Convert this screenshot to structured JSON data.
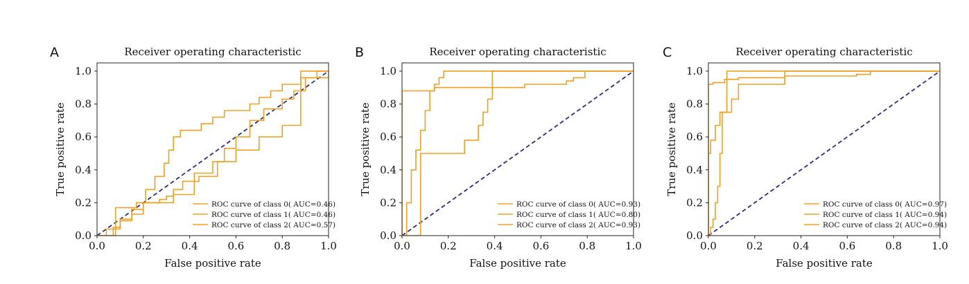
{
  "chart_data": [
    {
      "type": "line",
      "panel_label": "A",
      "title": "Receiver operating characteristic",
      "xlabel": "False positive rate",
      "ylabel": "True positive rate",
      "xlim": [
        0,
        1
      ],
      "ylim": [
        0,
        1.05
      ],
      "xticks": [
        "0.0",
        "0.2",
        "0.4",
        "0.6",
        "0.8",
        "1.0"
      ],
      "yticks": [
        "0.0",
        "0.2",
        "0.4",
        "0.6",
        "0.8",
        "1.0"
      ],
      "legend_position": "lower-right",
      "curve_color": "#f0a020",
      "diagonal_color": "#2a2a7a",
      "series": [
        {
          "name": "ROC curve of class 0( AUC=0.46)",
          "x": [
            0,
            0.07,
            0.07,
            0.1,
            0.1,
            0.15,
            0.15,
            0.2,
            0.2,
            0.27,
            0.27,
            0.3,
            0.3,
            0.33,
            0.33,
            0.37,
            0.37,
            0.44,
            0.44,
            0.52,
            0.52,
            0.6,
            0.6,
            0.7,
            0.7,
            0.8,
            0.8,
            0.88,
            0.88,
            1.0
          ],
          "y": [
            0,
            0,
            0.05,
            0.05,
            0.09,
            0.09,
            0.13,
            0.13,
            0.2,
            0.2,
            0.22,
            0.22,
            0.24,
            0.24,
            0.28,
            0.28,
            0.33,
            0.33,
            0.36,
            0.36,
            0.45,
            0.45,
            0.52,
            0.52,
            0.6,
            0.6,
            0.67,
            0.67,
            1.0,
            1.0
          ]
        },
        {
          "name": "ROC curve of class 1( AUC=0.46)",
          "x": [
            0,
            0.04,
            0.04,
            0.1,
            0.1,
            0.15,
            0.15,
            0.2,
            0.2,
            0.33,
            0.33,
            0.42,
            0.42,
            0.5,
            0.5,
            0.55,
            0.55,
            0.6,
            0.6,
            0.66,
            0.66,
            0.72,
            0.72,
            0.8,
            0.8,
            0.85,
            0.85,
            0.9,
            0.9,
            0.95,
            0.95,
            1.0
          ],
          "y": [
            0,
            0,
            0.04,
            0.04,
            0.1,
            0.1,
            0.16,
            0.16,
            0.2,
            0.2,
            0.25,
            0.25,
            0.38,
            0.38,
            0.45,
            0.45,
            0.53,
            0.53,
            0.6,
            0.6,
            0.7,
            0.7,
            0.77,
            0.77,
            0.83,
            0.83,
            0.88,
            0.88,
            0.96,
            0.96,
            1.0,
            1.0
          ]
        },
        {
          "name": "ROC curve of class 2( AUC=0.57)",
          "x": [
            0,
            0.08,
            0.08,
            0.17,
            0.17,
            0.21,
            0.21,
            0.25,
            0.25,
            0.29,
            0.29,
            0.31,
            0.31,
            0.33,
            0.33,
            0.36,
            0.36,
            0.45,
            0.45,
            0.5,
            0.5,
            0.55,
            0.55,
            0.66,
            0.66,
            0.7,
            0.7,
            0.75,
            0.75,
            0.8,
            0.8,
            0.88,
            0.88,
            1.0,
            1.0
          ],
          "y": [
            0,
            0,
            0.17,
            0.17,
            0.2,
            0.2,
            0.28,
            0.28,
            0.36,
            0.36,
            0.44,
            0.44,
            0.52,
            0.52,
            0.6,
            0.6,
            0.64,
            0.64,
            0.68,
            0.68,
            0.72,
            0.72,
            0.76,
            0.76,
            0.8,
            0.8,
            0.84,
            0.84,
            0.88,
            0.88,
            0.92,
            0.92,
            0.96,
            0.96,
            1.0
          ]
        }
      ]
    },
    {
      "type": "line",
      "panel_label": "B",
      "title": "Receiver operating characteristic",
      "xlabel": "False positive rate",
      "ylabel": "True positive rate",
      "xlim": [
        0,
        1
      ],
      "ylim": [
        0,
        1.05
      ],
      "xticks": [
        "0.0",
        "0.2",
        "0.4",
        "0.6",
        "0.8",
        "1.0"
      ],
      "yticks": [
        "0.0",
        "0.2",
        "0.4",
        "0.6",
        "0.8",
        "1.0"
      ],
      "legend_position": "lower-right",
      "curve_color": "#f0a020",
      "diagonal_color": "#2a2a7a",
      "series": [
        {
          "name": "ROC curve of class 0( AUC=0.93)",
          "x": [
            0,
            0.02,
            0.02,
            0.04,
            0.04,
            0.06,
            0.06,
            0.08,
            0.08,
            0.1,
            0.1,
            0.12,
            0.12,
            0.14,
            0.14,
            0.16,
            0.16,
            0.18,
            0.18,
            1.0
          ],
          "y": [
            0,
            0,
            0.2,
            0.2,
            0.4,
            0.4,
            0.52,
            0.52,
            0.64,
            0.64,
            0.76,
            0.76,
            0.88,
            0.88,
            0.92,
            0.92,
            0.96,
            0.96,
            1.0,
            1.0
          ]
        },
        {
          "name": "ROC curve of class 1( AUC=0.80)",
          "x": [
            0,
            0.08,
            0.08,
            0.27,
            0.27,
            0.33,
            0.33,
            0.35,
            0.35,
            0.37,
            0.37,
            0.39,
            0.39,
            0.54,
            0.54,
            1.0
          ],
          "y": [
            0,
            0,
            0.5,
            0.5,
            0.58,
            0.58,
            0.67,
            0.67,
            0.75,
            0.75,
            0.83,
            0.83,
            1.0,
            1.0,
            1.0,
            1.0
          ]
        },
        {
          "name": "ROC curve of class 2( AUC=0.93)",
          "x": [
            0,
            0.0,
            0.12,
            0.12,
            0.14,
            0.14,
            0.53,
            0.53,
            0.71,
            0.71,
            0.74,
            0.74,
            0.79,
            0.79,
            1.0
          ],
          "y": [
            0,
            0.88,
            0.88,
            0.88,
            0.88,
            0.9,
            0.9,
            0.92,
            0.92,
            0.94,
            0.94,
            0.96,
            0.96,
            1.0,
            1.0
          ]
        }
      ]
    },
    {
      "type": "line",
      "panel_label": "C",
      "title": "Receiver operating characteristic",
      "xlabel": "False positive rate",
      "ylabel": "True positive rate",
      "xlim": [
        0,
        1
      ],
      "ylim": [
        0,
        1.05
      ],
      "xticks": [
        "0.0",
        "0.2",
        "0.4",
        "0.6",
        "0.8",
        "1.0"
      ],
      "yticks": [
        "0.0",
        "0.2",
        "0.4",
        "0.6",
        "0.8",
        "1.0"
      ],
      "legend_position": "lower-right",
      "curve_color": "#f0a020",
      "diagonal_color": "#2a2a7a",
      "series": [
        {
          "name": "ROC curve of class 0( AUC=0.97)",
          "x": [
            0,
            0.01,
            0.01,
            0.02,
            0.02,
            0.03,
            0.03,
            0.04,
            0.04,
            0.05,
            0.05,
            0.06,
            0.06,
            0.08,
            0.08,
            1.0
          ],
          "y": [
            0,
            0,
            0.05,
            0.05,
            0.1,
            0.1,
            0.2,
            0.2,
            0.3,
            0.3,
            0.5,
            0.5,
            0.75,
            0.75,
            1.0,
            1.0
          ]
        },
        {
          "name": "ROC curve of class 1( AUC=0.94)",
          "x": [
            0,
            0.0,
            0.01,
            0.01,
            0.03,
            0.03,
            0.05,
            0.05,
            0.06,
            0.06,
            0.1,
            0.1,
            0.13,
            0.13,
            0.33,
            0.33,
            1.0
          ],
          "y": [
            0,
            0.5,
            0.5,
            0.58,
            0.58,
            0.67,
            0.67,
            0.75,
            0.75,
            0.75,
            0.75,
            0.83,
            0.83,
            0.92,
            0.92,
            1.0,
            1.0
          ]
        },
        {
          "name": "ROC curve of class 2( AUC=0.94)",
          "x": [
            0,
            0.0,
            0.02,
            0.02,
            0.07,
            0.07,
            0.13,
            0.13,
            0.33,
            0.33,
            0.64,
            0.64,
            0.7,
            0.7,
            1.0
          ],
          "y": [
            0,
            0.92,
            0.92,
            0.93,
            0.93,
            0.95,
            0.95,
            0.96,
            0.96,
            0.97,
            0.97,
            0.98,
            0.98,
            1.0,
            1.0
          ]
        }
      ]
    }
  ]
}
